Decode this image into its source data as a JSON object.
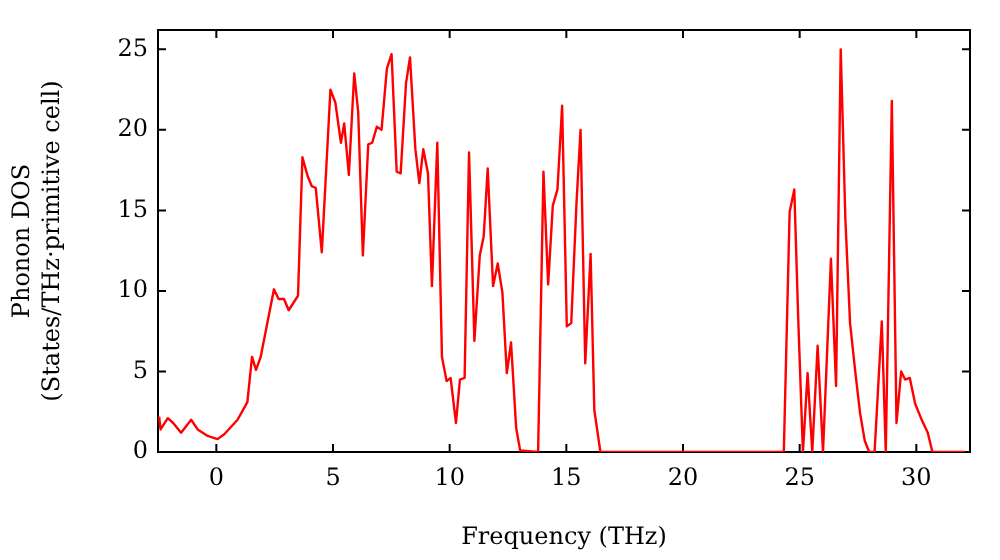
{
  "chart_data": {
    "type": "line",
    "xlabel": "Frequency (THz)",
    "ylabel": "Phonon DOS\n(States/THz·primitive cell)",
    "xlim": [
      -2.5,
      32.3
    ],
    "ylim": [
      0,
      26.2
    ],
    "xticks": [
      0,
      5,
      10,
      15,
      20,
      25,
      30
    ],
    "yticks": [
      0,
      5,
      10,
      15,
      20,
      25
    ],
    "grid": false,
    "legend": false,
    "marker": "none",
    "line_style": "solid",
    "series": [
      {
        "color": "#ff0000",
        "x": [
          -2.45,
          -2.39,
          -2.08,
          -1.85,
          -1.51,
          -1.08,
          -0.8,
          -0.37,
          0.05,
          0.34,
          0.91,
          1.33,
          1.53,
          1.7,
          1.9,
          2.47,
          2.67,
          2.9,
          3.1,
          3.5,
          3.69,
          3.92,
          4.09,
          4.26,
          4.52,
          4.89,
          5.1,
          5.34,
          5.48,
          5.68,
          5.91,
          6.08,
          6.28,
          6.51,
          6.68,
          6.88,
          7.08,
          7.31,
          7.51,
          7.73,
          7.9,
          8.13,
          8.3,
          8.53,
          8.7,
          8.87,
          9.07,
          9.24,
          9.47,
          9.67,
          9.87,
          10.04,
          10.27,
          10.44,
          10.64,
          10.83,
          11.06,
          11.29,
          11.46,
          11.63,
          11.86,
          12.06,
          12.26,
          12.45,
          12.63,
          12.85,
          13.02,
          13.79,
          14.02,
          14.22,
          14.42,
          14.62,
          14.82,
          15.02,
          15.21,
          15.44,
          15.61,
          15.81,
          16.04,
          16.2,
          16.46,
          24.32,
          24.57,
          24.77,
          24.94,
          25.14,
          25.34,
          25.54,
          25.77,
          26.0,
          26.34,
          26.56,
          26.76,
          26.96,
          27.16,
          27.39,
          27.59,
          27.79,
          27.98,
          28.21,
          28.52,
          28.69,
          28.95,
          29.15,
          29.35,
          29.52,
          29.72,
          29.95,
          30.2,
          30.49,
          30.69,
          32.1
        ],
        "values": [
          2.2,
          1.4,
          2.1,
          1.8,
          1.2,
          2.0,
          1.4,
          1.0,
          0.8,
          1.1,
          2.0,
          3.1,
          5.9,
          5.1,
          5.9,
          10.1,
          9.5,
          9.5,
          8.8,
          9.7,
          18.3,
          17.1,
          16.5,
          16.4,
          12.4,
          22.5,
          21.7,
          19.2,
          20.4,
          17.2,
          23.5,
          21.1,
          12.2,
          19.1,
          19.2,
          20.2,
          20.0,
          23.8,
          24.7,
          17.4,
          17.3,
          22.9,
          24.5,
          18.8,
          16.7,
          18.8,
          17.3,
          10.3,
          19.2,
          5.9,
          4.4,
          4.6,
          1.8,
          4.5,
          4.6,
          18.6,
          6.9,
          12.2,
          13.4,
          17.6,
          10.3,
          11.7,
          9.9,
          4.9,
          6.8,
          1.5,
          0.1,
          0,
          17.4,
          10.4,
          15.3,
          16.3,
          21.5,
          7.8,
          8.0,
          15.6,
          20.0,
          5.5,
          12.3,
          2.6,
          0,
          0,
          14.9,
          16.3,
          8.2,
          0,
          4.9,
          0,
          6.6,
          0,
          12.0,
          4.1,
          25.0,
          14.4,
          8.0,
          4.9,
          2.4,
          0.7,
          0,
          0,
          8.1,
          0,
          21.8,
          1.8,
          5.0,
          4.5,
          4.6,
          3.0,
          2.1,
          1.2,
          0,
          0
        ]
      }
    ]
  }
}
